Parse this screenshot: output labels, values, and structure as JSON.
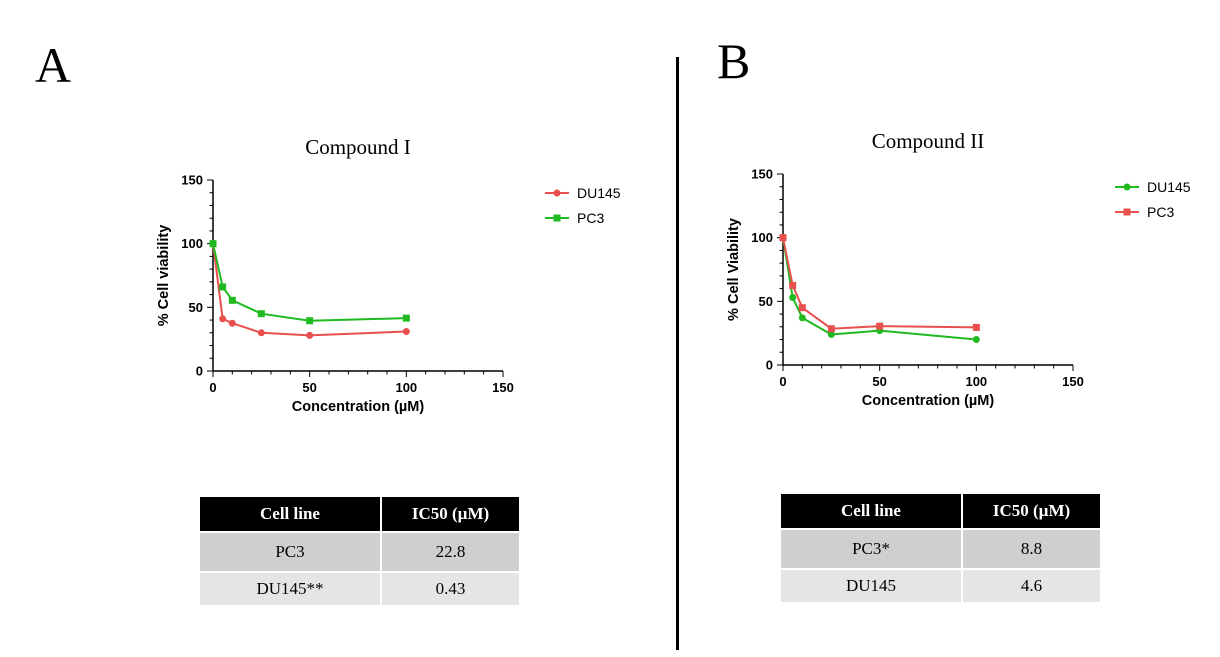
{
  "panels": [
    {
      "letter": "A",
      "chart_data": {
        "type": "line",
        "title": "Compound I",
        "xlabel": "Concentration  (µM)",
        "ylabel": "% Cell viability",
        "xlim": [
          0,
          150
        ],
        "ylim": [
          0,
          150
        ],
        "xticks": [
          "0",
          "50",
          "100",
          "150"
        ],
        "yticks": [
          "0",
          "50",
          "100",
          "150"
        ],
        "legend_position": "right",
        "series": [
          {
            "name": "DU145",
            "color": "#e8504e",
            "marker": "circle",
            "x": [
              0,
              5,
              10,
              25,
              50,
              100
            ],
            "y": [
              100,
              41,
              37.5,
              30,
              28,
              31
            ]
          },
          {
            "name": "PC3",
            "color": "#1fba1f",
            "marker": "square",
            "x": [
              0,
              5,
              10,
              25,
              50,
              100
            ],
            "y": [
              100,
              66,
              55.5,
              45,
              39.5,
              41.5
            ]
          }
        ]
      },
      "table": {
        "headers": [
          "Cell line",
          "IC50 (µM)"
        ],
        "rows": [
          [
            "PC3",
            "22.8"
          ],
          [
            "DU145**",
            "0.43"
          ]
        ]
      }
    },
    {
      "letter": "B",
      "chart_data": {
        "type": "line",
        "title": "Compound II",
        "xlabel": "Concentration  (µM)",
        "ylabel": "% Cell Viability",
        "xlim": [
          0,
          150
        ],
        "ylim": [
          0,
          150
        ],
        "xticks": [
          "0",
          "50",
          "100",
          "150"
        ],
        "yticks": [
          "0",
          "50",
          "100",
          "150"
        ],
        "legend_position": "right",
        "series": [
          {
            "name": "DU145",
            "color": "#1fba1f",
            "marker": "circle",
            "x": [
              0,
              5,
              10,
              25,
              50,
              100
            ],
            "y": [
              100,
              53,
              37,
              24,
              27,
              20
            ]
          },
          {
            "name": "PC3",
            "color": "#e8504e",
            "marker": "square",
            "x": [
              0,
              5,
              10,
              25,
              50,
              100
            ],
            "y": [
              100,
              62.5,
              45,
              28.5,
              30.5,
              29.5
            ]
          }
        ]
      },
      "table": {
        "headers": [
          "Cell line",
          "IC50 (µM)"
        ],
        "rows": [
          [
            "PC3*",
            "8.8"
          ],
          [
            "DU145",
            "4.6"
          ]
        ]
      }
    }
  ]
}
